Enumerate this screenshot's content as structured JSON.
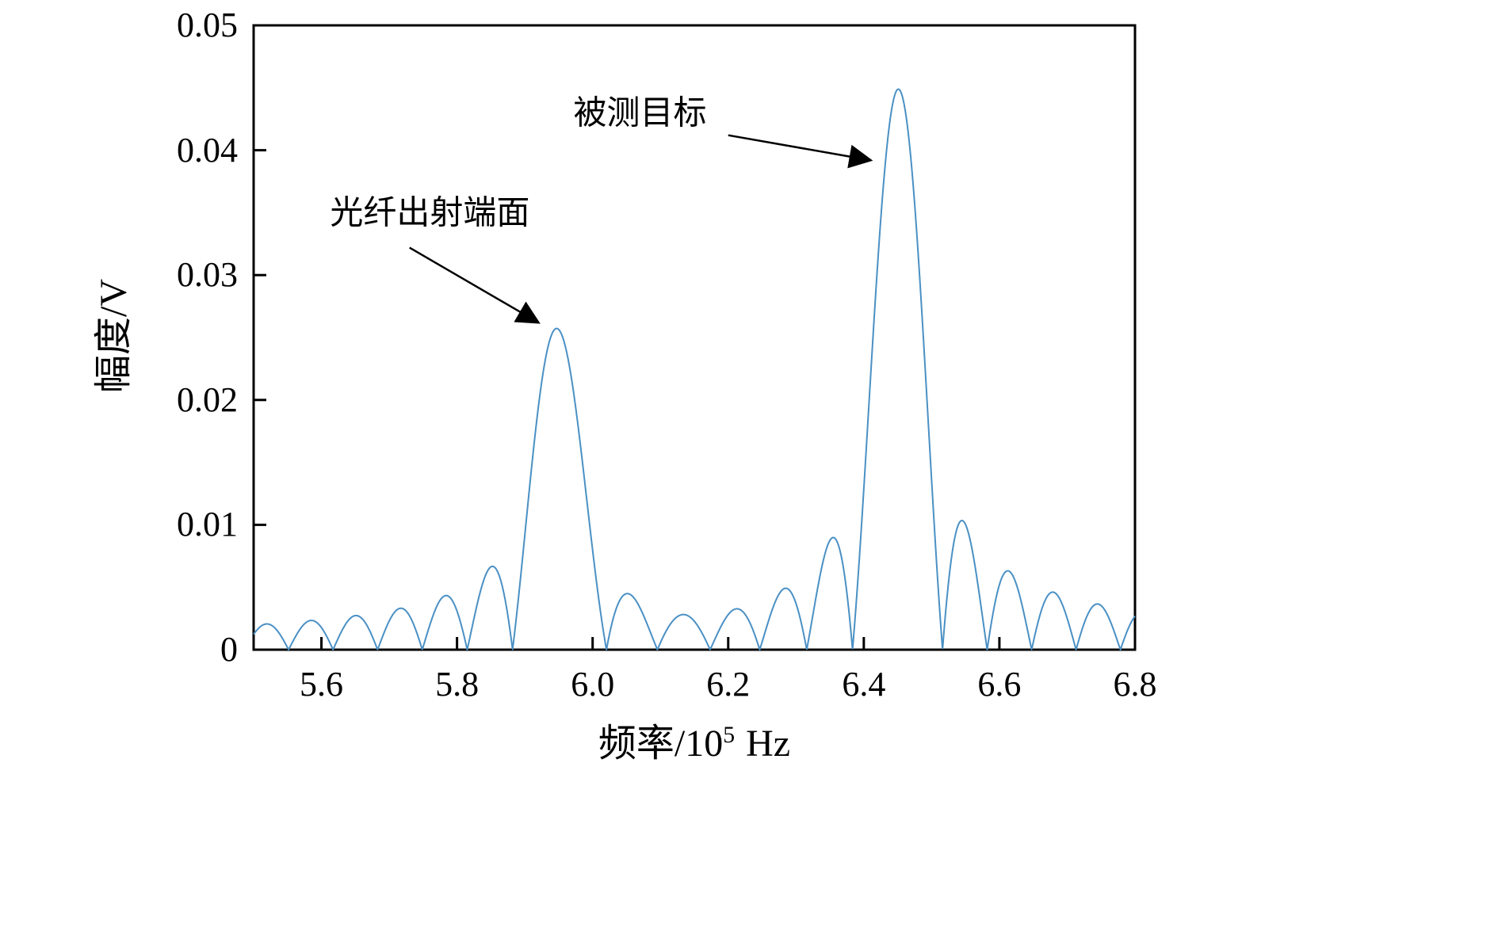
{
  "figure": {
    "background": "#ffffff",
    "axes_color": "#000000"
  },
  "axes": {
    "ylabel": "幅度/V",
    "xlabel_prefix": "频率/10",
    "xlabel_sup": "5",
    "xlabel_unit": "Hz"
  },
  "chart_data": {
    "type": "line",
    "title": "",
    "xlabel": "频率/10⁵ Hz",
    "ylabel": "幅度/V",
    "xlim": [
      5.5,
      6.8
    ],
    "ylim": [
      0,
      0.05
    ],
    "xticks": [
      5.6,
      5.8,
      6.0,
      6.2,
      6.4,
      6.6,
      6.8
    ],
    "xtick_labels": [
      "5.6",
      "5.8",
      "6.0",
      "6.2",
      "6.4",
      "6.6",
      "6.8"
    ],
    "yticks": [
      0,
      0.01,
      0.02,
      0.03,
      0.04,
      0.05
    ],
    "ytick_labels": [
      "0",
      "0.01",
      "0.02",
      "0.03",
      "0.04",
      "0.05"
    ],
    "grid": false,
    "legend": null,
    "line_color": "#4a90c4",
    "model": "abs_sum_of_sinc",
    "sinc_lobe_half_width": 0.065,
    "peaks": [
      {
        "name": "光纤出射端面",
        "center_x": 5.95,
        "peak_value": 0.0272
      },
      {
        "name": "被测目标",
        "center_x": 6.45,
        "peak_value": 0.0458
      }
    ],
    "sidelobe_first_levels": [
      0.006,
      0.0097
    ],
    "annotations": [
      {
        "text": "光纤出射端面",
        "text_x": 5.76,
        "text_y": 0.0352,
        "arrow_from_x": 5.73,
        "arrow_from_y": 0.0322,
        "arrow_to_x": 5.92,
        "arrow_to_y": 0.0262
      },
      {
        "text": "被测目标",
        "text_x": 6.07,
        "text_y": 0.0432,
        "arrow_from_x": 6.2,
        "arrow_from_y": 0.0412,
        "arrow_to_x": 6.41,
        "arrow_to_y": 0.0392
      }
    ]
  }
}
